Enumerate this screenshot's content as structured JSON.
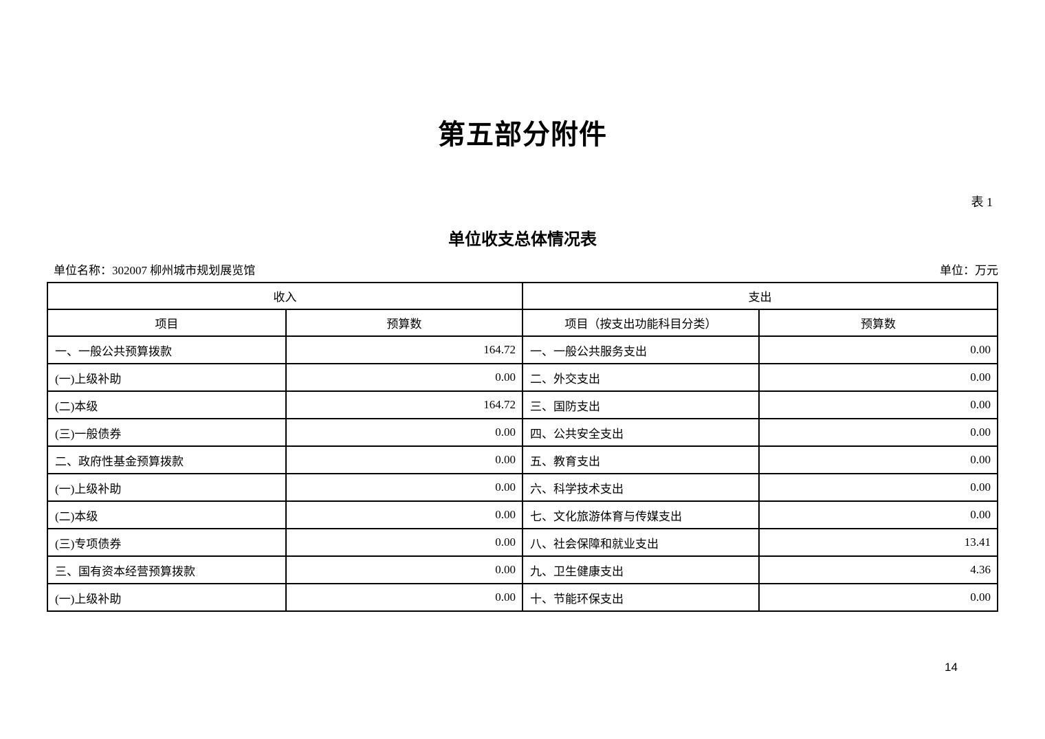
{
  "page": {
    "title": "第五部分附件",
    "table_label": "表 1",
    "subtitle": "单位收支总体情况表",
    "unit_name": "单位名称：302007 柳州城市规划展览馆",
    "unit_label": "单位：万元",
    "page_number": "14"
  },
  "colors": {
    "text": "#000000",
    "background": "#ffffff",
    "table_border": "#000000"
  },
  "table": {
    "income": {
      "header": "收入",
      "columns": [
        "项目",
        "预算数"
      ],
      "rows": [
        {
          "item": "一、一般公共预算拨款",
          "budget": "164.72"
        },
        {
          "item": "(一)上级补助",
          "budget": "0.00"
        },
        {
          "item": "(二)本级",
          "budget": "164.72"
        },
        {
          "item": "(三)一般债券",
          "budget": "0.00"
        },
        {
          "item": "二、政府性基金预算拨款",
          "budget": "0.00"
        },
        {
          "item": "(一)上级补助",
          "budget": "0.00"
        },
        {
          "item": "(二)本级",
          "budget": "0.00"
        },
        {
          "item": "(三)专项债券",
          "budget": "0.00"
        },
        {
          "item": "三、国有资本经营预算拨款",
          "budget": "0.00"
        },
        {
          "item": "(一)上级补助",
          "budget": "0.00"
        }
      ]
    },
    "expenditure": {
      "header": "支出",
      "columns": [
        "项目（按支出功能科目分类）",
        "预算数"
      ],
      "rows": [
        {
          "item": "一、一般公共服务支出",
          "budget": "0.00"
        },
        {
          "item": "二、外交支出",
          "budget": "0.00"
        },
        {
          "item": "三、国防支出",
          "budget": "0.00"
        },
        {
          "item": "四、公共安全支出",
          "budget": "0.00"
        },
        {
          "item": "五、教育支出",
          "budget": "0.00"
        },
        {
          "item": "六、科学技术支出",
          "budget": "0.00"
        },
        {
          "item": "七、文化旅游体育与传媒支出",
          "budget": "0.00"
        },
        {
          "item": "八、社会保障和就业支出",
          "budget": "13.41"
        },
        {
          "item": "九、卫生健康支出",
          "budget": "4.36"
        },
        {
          "item": "十、节能环保支出",
          "budget": "0.00"
        }
      ]
    }
  }
}
